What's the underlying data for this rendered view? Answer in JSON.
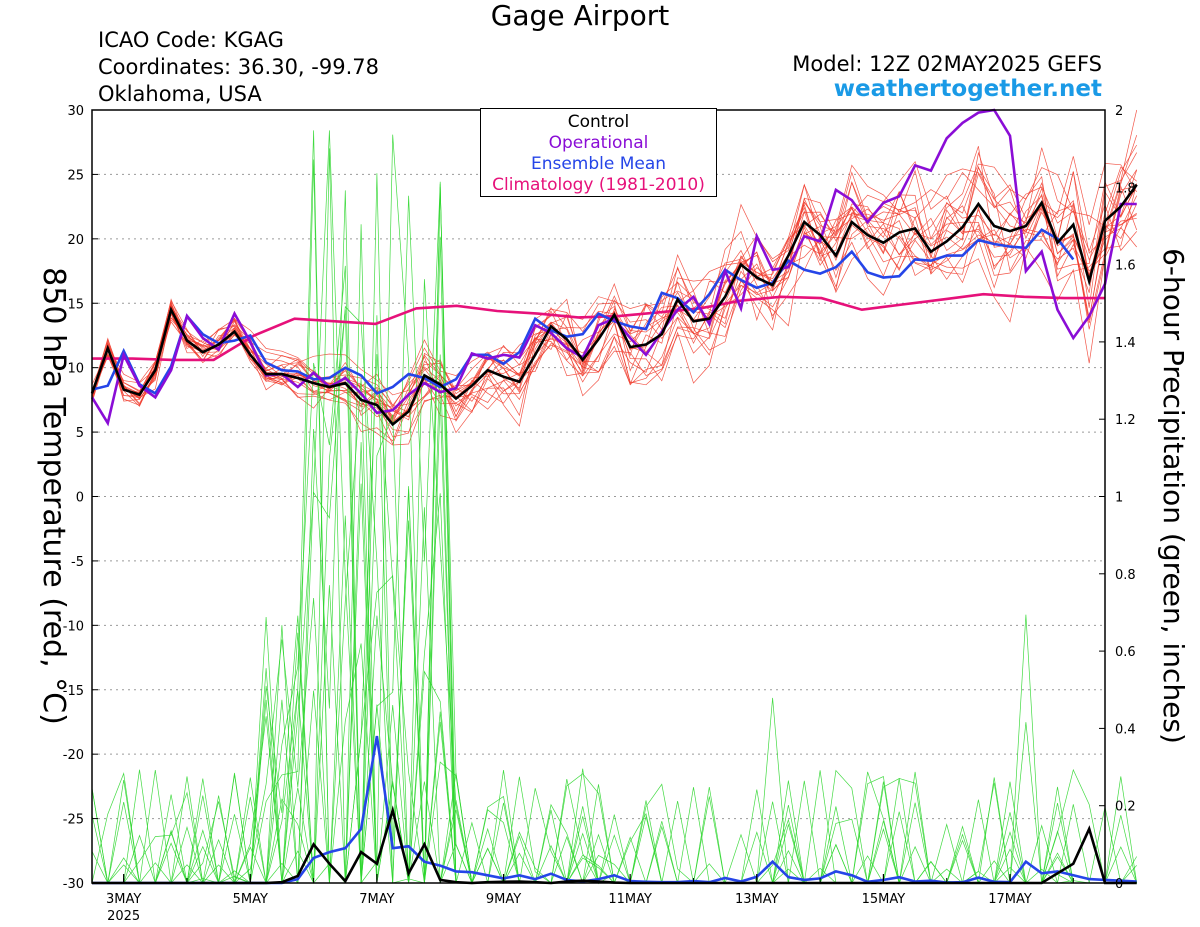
{
  "header": {
    "title": "Gage Airport",
    "icao": "ICAO Code: KGAG",
    "coordinates": "Coordinates: 36.30, -99.78",
    "region": "Oklahoma, USA",
    "model": "Model: 12Z 02MAY2025 GEFS",
    "site": "weathertogether.net"
  },
  "legend": {
    "items": [
      {
        "label": "Control",
        "color": "#000000"
      },
      {
        "label": "Operational",
        "color": "#8a0dd6"
      },
      {
        "label": "Ensemble Mean",
        "color": "#2545e8"
      },
      {
        "label": "Climatology (1981-2010)",
        "color": "#e6117a"
      }
    ]
  },
  "chart_data": {
    "type": "line",
    "left_axis": {
      "label": "850 hPa Temperature (red, °C)",
      "min": -30,
      "max": 30,
      "ticks": [
        30,
        25,
        20,
        15,
        10,
        5,
        0,
        -5,
        -10,
        -15,
        -20,
        -25,
        -30
      ]
    },
    "right_axis": {
      "label": "6-hour Precipitation (green, inches)",
      "min": 0,
      "max": 2,
      "ticks": [
        0,
        0.2,
        0.4,
        0.6,
        0.8,
        1,
        1.2,
        1.4,
        1.6,
        1.8,
        2
      ]
    },
    "x_axis": {
      "min_day": 2.5,
      "max_day": 18.5,
      "step_hours": 6,
      "ticks": [
        {
          "day": 3,
          "label": "3MAY",
          "sub": "2025"
        },
        {
          "day": 5,
          "label": "5MAY"
        },
        {
          "day": 7,
          "label": "7MAY"
        },
        {
          "day": 9,
          "label": "9MAY"
        },
        {
          "day": 11,
          "label": "11MAY"
        },
        {
          "day": 13,
          "label": "13MAY"
        },
        {
          "day": 15,
          "label": "15MAY"
        },
        {
          "day": 17,
          "label": "17MAY"
        }
      ]
    },
    "grid": "horizontal dotted",
    "colors": {
      "members_temp": "#f03a2a",
      "members_precip": "#2ed62e",
      "control": "#000000",
      "operational": "#8a0dd6",
      "mean": "#2545e8",
      "climatology": "#e6117a"
    },
    "series_temperature": {
      "Control": [
        8.0,
        11.5,
        8.3,
        7.9,
        9.8,
        14.5,
        12.1,
        11.2,
        11.8,
        12.8,
        11.0,
        9.5,
        9.5,
        9.2,
        8.8,
        8.5,
        8.8,
        7.5,
        7.1,
        5.6,
        6.6,
        9.4,
        8.7,
        7.6,
        8.6,
        9.8,
        9.3,
        8.9,
        11.0,
        13.2,
        12.2,
        10.6,
        12.2,
        14.1,
        11.6,
        11.8,
        12.6,
        15.3,
        13.6,
        13.8,
        15.5,
        18.0,
        17.0,
        16.4,
        18.7,
        21.3,
        20.3,
        18.7,
        21.3,
        20.3,
        19.7,
        20.5,
        20.8,
        19.0,
        19.8,
        20.9,
        22.7,
        21.0,
        20.6,
        21.0,
        22.8,
        19.7,
        21.1,
        16.7,
        21.4,
        22.5,
        24.2
      ],
      "Operational": [
        7.7,
        5.7,
        11.0,
        8.6,
        7.7,
        9.8,
        14.0,
        12.3,
        11.4,
        14.2,
        12.0,
        9.4,
        9.5,
        8.5,
        9.6,
        8.5,
        9.2,
        8.0,
        6.5,
        6.7,
        7.9,
        8.8,
        8.1,
        8.4,
        11.1,
        10.7,
        11.0,
        10.8,
        13.3,
        12.7,
        11.5,
        10.8,
        13.3,
        13.8,
        12.3,
        11.0,
        12.8,
        14.5,
        15.5,
        13.4,
        17.5,
        14.6,
        20.2,
        17.6,
        17.8,
        20.2,
        19.8,
        23.8,
        23.0,
        21.3,
        22.8,
        23.3,
        25.7,
        25.3,
        27.8,
        29.0,
        29.8,
        32.0,
        28.0,
        17.5,
        19.0,
        14.5,
        12.3,
        14.0,
        16.5,
        22.7,
        22.7
      ],
      "Ensemble Mean": [
        8.3,
        8.6,
        11.3,
        8.7,
        8.0,
        10.1,
        14.0,
        12.6,
        11.9,
        12.1,
        12.5,
        10.4,
        9.8,
        9.7,
        9.1,
        9.2,
        10.0,
        9.4,
        8.0,
        8.5,
        9.5,
        9.2,
        8.5,
        9.1,
        11.0,
        11.0,
        10.3,
        11.2,
        13.8,
        12.9,
        12.4,
        12.6,
        14.2,
        13.6,
        13.2,
        13.0,
        15.8,
        15.4,
        14.3,
        15.7,
        17.6,
        16.8,
        16.2,
        16.6,
        18.3,
        17.6,
        17.3,
        17.8,
        19.0,
        17.4,
        17.0,
        17.1,
        18.4,
        18.3,
        18.7,
        18.7,
        19.9,
        19.6,
        19.4,
        19.3,
        20.7,
        20.0,
        18.4
      ],
      "Climatology (1981-2010)": [
        10.7,
        10.7,
        10.6,
        10.6,
        12.5,
        13.8,
        13.6,
        13.4,
        14.6,
        14.8,
        14.4,
        14.2,
        13.9,
        14.0,
        14.3,
        14.6,
        15.2,
        15.5,
        15.4,
        14.5,
        14.9,
        15.3,
        15.7,
        15.5,
        15.4,
        15.4
      ]
    },
    "series_precipitation": {
      "Control": [
        0,
        0,
        0,
        0,
        0,
        0,
        0,
        0,
        0,
        0,
        0,
        0,
        0.002,
        0.018,
        0.1,
        0.05,
        0.005,
        0.08,
        0.05,
        0.188,
        0.025,
        0.1,
        0.008,
        0.002,
        0,
        0.002,
        0.003,
        0.004,
        0.002,
        0,
        0.004,
        0.006,
        0.004,
        0.001,
        0,
        0,
        0,
        0,
        0,
        0,
        0,
        0,
        0,
        0,
        0,
        0,
        0,
        0,
        0,
        0,
        0,
        0,
        0,
        0,
        0,
        0,
        0,
        0,
        0,
        0,
        0,
        0.025,
        0.05,
        0.14,
        0,
        0,
        0
      ],
      "Ensemble Mean": [
        0,
        0,
        0,
        0,
        0,
        0,
        0,
        0,
        0,
        0,
        0,
        0,
        0,
        0.01,
        0.065,
        0.08,
        0.09,
        0.14,
        0.38,
        0.09,
        0.095,
        0.055,
        0.045,
        0.03,
        0.028,
        0.02,
        0.012,
        0.02,
        0.01,
        0.024,
        0.008,
        0.004,
        0.01,
        0.02,
        0.005,
        0.003,
        0.002,
        0.002,
        0.005,
        0.002,
        0.013,
        0.004,
        0.016,
        0.055,
        0.015,
        0.008,
        0.012,
        0.03,
        0.02,
        0.003,
        0.008,
        0.015,
        0.004,
        0.006,
        0.001,
        0.002,
        0.014,
        0.003,
        0.002,
        0.055,
        0.025,
        0.03,
        0.02,
        0.01,
        0.008,
        0.006,
        0.004
      ]
    }
  }
}
